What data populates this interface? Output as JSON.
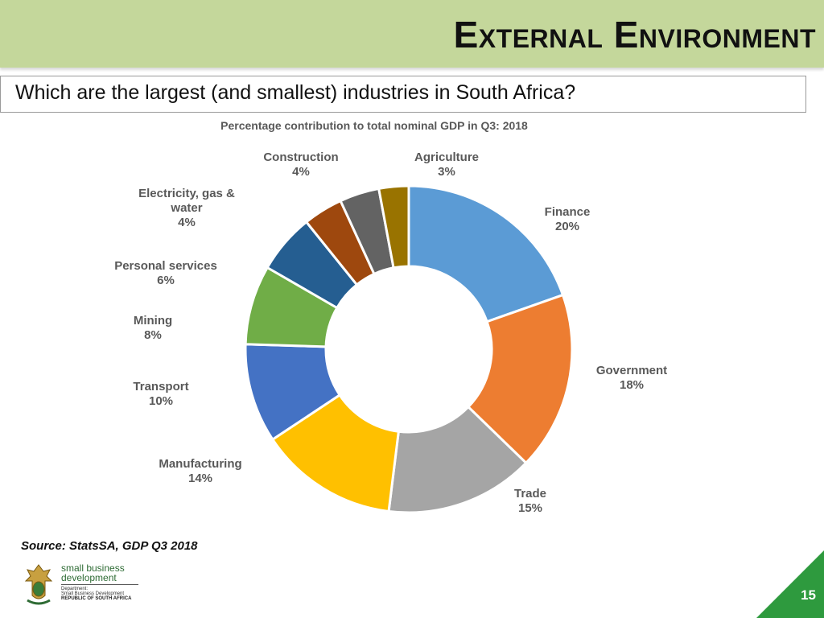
{
  "slide": {
    "title": "External Environment",
    "question": "Which are the largest (and smallest) industries in South Africa?",
    "source": "Source: StatsSA, GDP Q3 2018",
    "page_number": "15"
  },
  "logo": {
    "line1": "small business",
    "line2": "development",
    "line3": "Department:",
    "line4": "Small Business Development",
    "line5": "REPUBLIC OF SOUTH AFRICA"
  },
  "chart_data": {
    "type": "pie",
    "style": "doughnut",
    "title": "Percentage contribution to total nominal GDP in Q3: 2018",
    "categories": [
      "Finance",
      "Government",
      "Trade",
      "Manufacturing",
      "Transport",
      "Mining",
      "Personal services",
      "Electricity, gas & water",
      "Construction",
      "Agriculture"
    ],
    "values": [
      20,
      18,
      15,
      14,
      10,
      8,
      6,
      4,
      4,
      3
    ],
    "value_labels": [
      "20%",
      "18%",
      "15%",
      "14%",
      "10%",
      "8%",
      "6%",
      "4%",
      "4%",
      "3%"
    ],
    "category_label_lines": [
      [
        "Finance"
      ],
      [
        "Government"
      ],
      [
        "Trade"
      ],
      [
        "Manufacturing"
      ],
      [
        "Transport"
      ],
      [
        "Mining"
      ],
      [
        "Personal services"
      ],
      [
        "Electricity, gas &",
        "water"
      ],
      [
        "Construction"
      ],
      [
        "Agriculture"
      ]
    ],
    "colors": [
      "#5b9bd5",
      "#ed7d31",
      "#a5a5a5",
      "#ffc000",
      "#4472c4",
      "#70ad47",
      "#255e91",
      "#9e480e",
      "#636363",
      "#997300"
    ],
    "legend": "none"
  }
}
